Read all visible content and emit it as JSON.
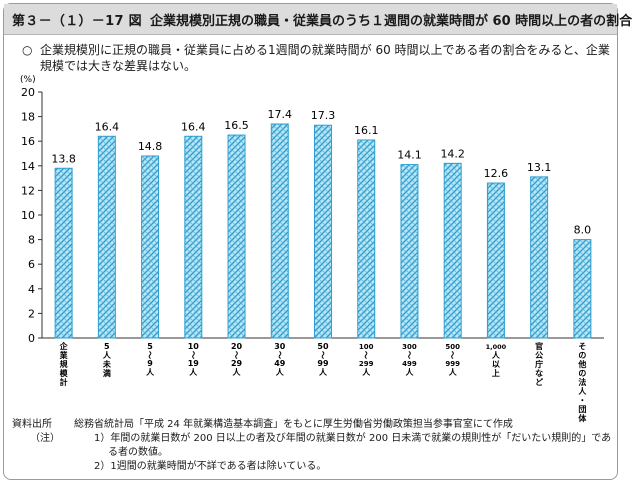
{
  "figure": {
    "number": "第３－（１）－17 図",
    "title": "企業規模別正規の職員・従業員のうち１週間の就業時間が 60 時間以上の者の割合"
  },
  "summary": {
    "mark": "○",
    "text": "企業規模別に正規の職員・従業員に占める1週間の就業時間が 60 時間以上である者の割合をみると、企業規模では大きな差異はない。"
  },
  "chart_data": {
    "type": "bar",
    "ylabel": "(%)",
    "ylim": [
      0,
      20
    ],
    "yticks": [
      0,
      2,
      4,
      6,
      8,
      10,
      12,
      14,
      16,
      18,
      20
    ],
    "grid": false,
    "categories": [
      "企業規模計",
      "5人未満",
      "5〜9人",
      "10〜19人",
      "20〜29人",
      "30〜49人",
      "50〜99人",
      "100〜299人",
      "300〜499人",
      "500〜999人",
      "1,000人以上",
      "官公庁など",
      "その他の法人・団体"
    ],
    "values": [
      13.8,
      16.4,
      14.8,
      16.4,
      16.5,
      17.4,
      17.3,
      16.1,
      14.1,
      14.2,
      12.6,
      13.1,
      8.0
    ],
    "data_labels": [
      "13.8",
      "16.4",
      "14.8",
      "16.4",
      "16.5",
      "17.4",
      "17.3",
      "16.1",
      "14.1",
      "14.2",
      "12.6",
      "13.1",
      "8.0"
    ],
    "category_labels": [
      [
        "企",
        "業",
        "規",
        "模",
        "計"
      ],
      [
        "5",
        "人",
        "未",
        "満"
      ],
      [
        "5",
        "〜",
        "9",
        "人"
      ],
      [
        "10",
        "〜",
        "19",
        "人"
      ],
      [
        "20",
        "〜",
        "29",
        "人"
      ],
      [
        "30",
        "〜",
        "49",
        "人"
      ],
      [
        "50",
        "〜",
        "99",
        "人"
      ],
      [
        "100",
        "〜",
        "299",
        "人"
      ],
      [
        "300",
        "〜",
        "499",
        "人"
      ],
      [
        "500",
        "〜",
        "999",
        "人"
      ],
      [
        "1,000",
        "人",
        "以",
        "上"
      ],
      [
        "官",
        "公",
        "庁",
        "な",
        "ど"
      ],
      [
        "そ",
        "の",
        "他",
        "の",
        "法",
        "人",
        "・",
        "団",
        "体"
      ]
    ],
    "bar_color": "#2e9fd0",
    "bar_fill": "#bfe4f2"
  },
  "notes": {
    "source_label": "資料出所",
    "source_text": "総務省統計局「平成 24 年就業構造基本調査」をもとに厚生労働省労働政策担当参事官室にて作成",
    "note_label": "（注）",
    "note1": "1）年間の就業日数が 200 日以上の者及び年間の就業日数が 200 日未満で就業の規則性が「だいたい規則的」である者の数値。",
    "note2": "2）1週間の就業時間が不詳である者は除いている。"
  }
}
